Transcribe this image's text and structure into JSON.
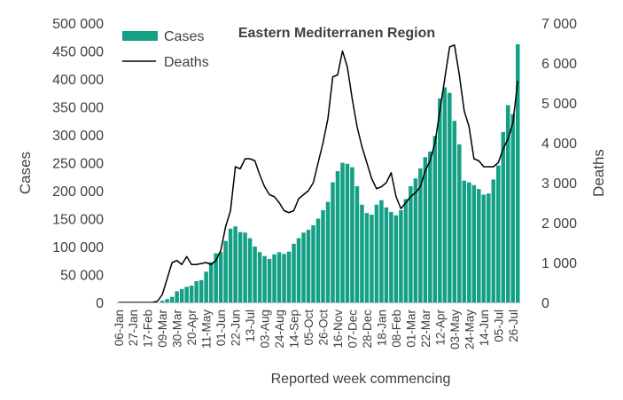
{
  "chart_data": {
    "type": "bar+line",
    "title": "Eastern Mediterranen Region",
    "xlabel": "Reported week commencing",
    "ylabel_left": "Cases",
    "ylabel_right": "Deaths",
    "ylim_left": [
      0,
      500000
    ],
    "ylim_right": [
      0,
      7000
    ],
    "yticks_left": [
      0,
      50000,
      100000,
      150000,
      200000,
      250000,
      300000,
      350000,
      400000,
      450000,
      500000
    ],
    "yticks_left_labels": [
      "0",
      "50 000",
      "100 000",
      "150 000",
      "200 000",
      "250 000",
      "300 000",
      "350 000",
      "400 000",
      "450 000",
      "500 000"
    ],
    "yticks_right": [
      0,
      1000,
      2000,
      3000,
      4000,
      5000,
      6000,
      7000
    ],
    "yticks_right_labels": [
      "0",
      "1 000",
      "2 000",
      "3 000",
      "4 000",
      "5 000",
      "6 000",
      "7 000"
    ],
    "x_tick_labels": [
      "06-Jan",
      "27-Jan",
      "17-Feb",
      "09-Mar",
      "30-Mar",
      "20-Apr",
      "11-May",
      "01-Jun",
      "22-Jun",
      "13-Jul",
      "03-Aug",
      "24-Aug",
      "14-Sep",
      "05-Oct",
      "26-Oct",
      "16-Nov",
      "07-Dec",
      "28-Dec",
      "18-Jan",
      "08-Feb",
      "01-Mar",
      "22-Mar",
      "12-Apr",
      "03-May",
      "24-May",
      "14-Jun",
      "05-Jul",
      "26-Jul"
    ],
    "legend": {
      "position": "top-left"
    },
    "colors": {
      "cases": "#14a085",
      "deaths": "#000000"
    },
    "series": [
      {
        "name": "Cases",
        "kind": "bar",
        "axis": "left",
        "values": [
          0,
          0,
          0,
          0,
          0,
          0,
          0,
          0,
          0,
          3000,
          6000,
          10000,
          20000,
          24000,
          28000,
          30000,
          38000,
          40000,
          55000,
          72000,
          88000,
          90000,
          110000,
          132000,
          136000,
          126000,
          125000,
          115000,
          100000,
          90000,
          83000,
          78000,
          86000,
          90000,
          87000,
          91000,
          105000,
          115000,
          125000,
          130000,
          138000,
          150000,
          165000,
          180000,
          215000,
          235000,
          250000,
          248000,
          242000,
          208000,
          175000,
          160000,
          157000,
          175000,
          183000,
          170000,
          162000,
          156000,
          165000,
          185000,
          208000,
          222000,
          240000,
          260000,
          270000,
          298000,
          365000,
          385000,
          375000,
          325000,
          283000,
          218000,
          215000,
          210000,
          203000,
          193000,
          195000,
          220000,
          245000,
          305000,
          353000,
          337000,
          462000
        ]
      },
      {
        "name": "Deaths",
        "kind": "line",
        "axis": "right",
        "values": [
          0,
          0,
          0,
          0,
          0,
          0,
          0,
          0,
          30,
          200,
          600,
          1000,
          1050,
          950,
          1150,
          950,
          950,
          975,
          1000,
          950,
          1050,
          1300,
          1900,
          2300,
          3400,
          3350,
          3600,
          3600,
          3550,
          3200,
          2900,
          2700,
          2650,
          2500,
          2300,
          2250,
          2300,
          2600,
          2700,
          2800,
          3000,
          3500,
          4000,
          4600,
          5650,
          5700,
          6300,
          5900,
          5100,
          4400,
          3900,
          3500,
          3100,
          2850,
          2900,
          3000,
          3250,
          2650,
          2350,
          2500,
          2650,
          2750,
          2900,
          3300,
          3550,
          4000,
          4800,
          5600,
          6400,
          6450,
          5700,
          4800,
          4400,
          3600,
          3550,
          3400,
          3400,
          3400,
          3500,
          3850,
          4100,
          4500,
          5550
        ]
      }
    ]
  }
}
